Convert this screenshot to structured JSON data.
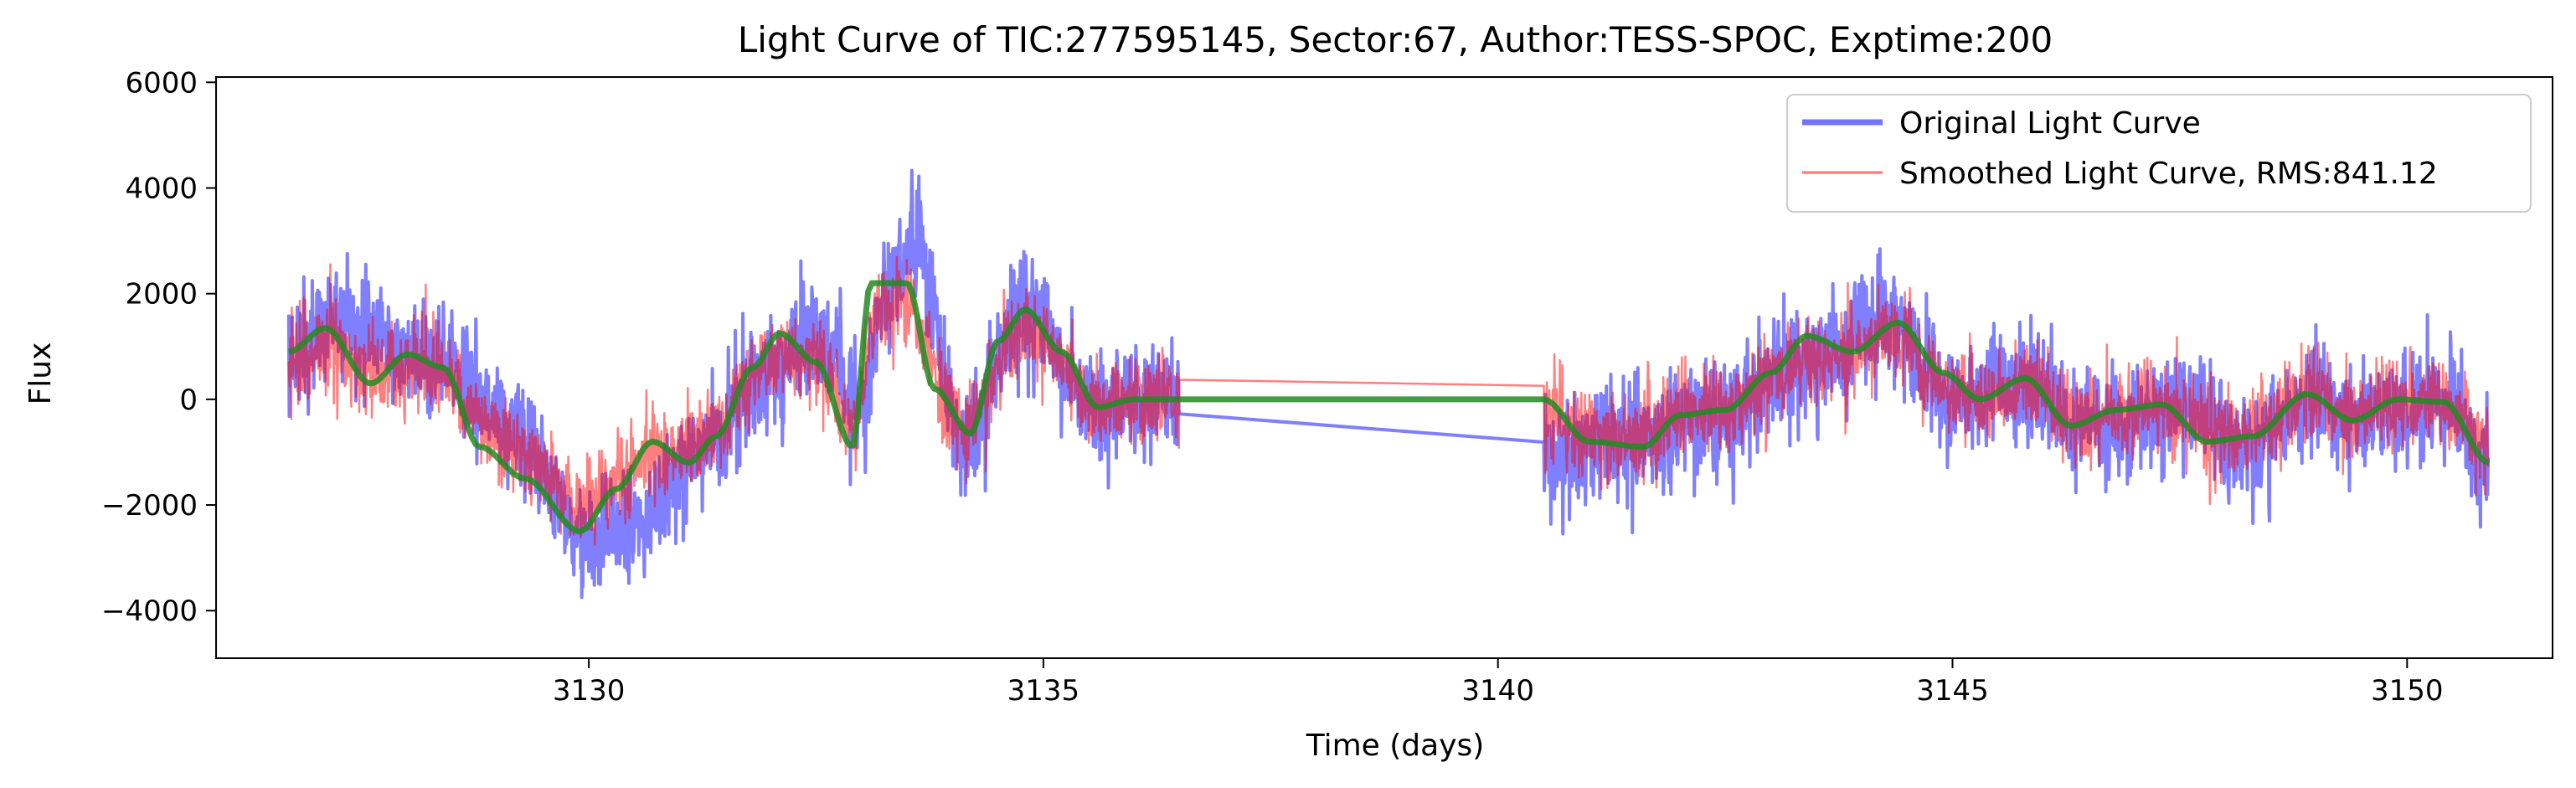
{
  "chart_data": {
    "type": "line",
    "title": "Light Curve of TIC:277595145, Sector:67, Author:TESS-SPOC, Exptime:200",
    "xlabel": "Time (days)",
    "ylabel": "Flux",
    "xlim": [
      3125.9,
      3151.6
    ],
    "ylim": [
      -4900,
      6100
    ],
    "x_ticks": [
      3130,
      3135,
      3140,
      3145,
      3150
    ],
    "y_ticks": [
      -4000,
      -2000,
      0,
      2000,
      4000,
      6000
    ],
    "grid": false,
    "legend_position": "top-right",
    "time_range": [
      3126.7,
      3150.9
    ],
    "gap": [
      3136.5,
      3140.5
    ],
    "series": [
      {
        "name": "Original Light Curve",
        "color": "#0000ff",
        "opacity": 0.5,
        "description_points": {
          "x": [
            3126.7,
            3127.2,
            3128.3,
            3129.2,
            3130.0,
            3130.5,
            3131.3,
            3131.9,
            3132.5,
            3133.0,
            3133.3,
            3133.6,
            3134.1,
            3134.8,
            3135.5,
            3136.5,
            3140.5,
            3141.3,
            3142.4,
            3143.4,
            3144.3,
            3145.0,
            3145.7,
            3146.6,
            3147.6,
            3148.2,
            3149.0,
            3149.8,
            3150.4,
            3150.9
          ],
          "y": [
            900,
            1400,
            800,
            -600,
            -2600,
            -2300,
            -900,
            400,
            1200,
            -200,
            2200,
            3000,
            -800,
            1700,
            0,
            0,
            -1000,
            -800,
            -400,
            600,
            1500,
            0,
            300,
            -500,
            -200,
            -900,
            0,
            -300,
            0,
            -1200
          ]
        }
      },
      {
        "name": "Smoothed Light Curve, RMS:841.12",
        "color": "#ff0000",
        "opacity": 0.5
      },
      {
        "name": "",
        "color": "#228b22",
        "opacity": 0.85,
        "x": [
          3126.7,
          3127.1,
          3127.6,
          3128.0,
          3128.4,
          3128.8,
          3129.3,
          3129.9,
          3130.3,
          3130.7,
          3131.1,
          3131.4,
          3131.8,
          3132.1,
          3132.5,
          3132.9,
          3133.1,
          3133.5,
          3133.8,
          3134.2,
          3134.5,
          3134.8,
          3135.2,
          3135.6,
          3136.0,
          3136.5,
          3140.5,
          3141.0,
          3141.6,
          3142.0,
          3142.5,
          3143.0,
          3143.4,
          3143.9,
          3144.4,
          3144.9,
          3145.3,
          3145.8,
          3146.3,
          3146.8,
          3147.3,
          3147.8,
          3148.3,
          3148.9,
          3149.4,
          3149.9,
          3150.4,
          3150.9
        ],
        "y": [
          900,
          1350,
          300,
          850,
          600,
          -900,
          -1500,
          -2500,
          -1700,
          -800,
          -1200,
          -700,
          600,
          1250,
          700,
          -900,
          2200,
          2200,
          200,
          -650,
          1100,
          1700,
          900,
          -150,
          0,
          0,
          0,
          -800,
          -900,
          -300,
          -200,
          500,
          1200,
          900,
          1450,
          500,
          0,
          400,
          -500,
          -200,
          -100,
          -800,
          -700,
          100,
          -400,
          0,
          -50,
          -1200
        ]
      }
    ]
  }
}
